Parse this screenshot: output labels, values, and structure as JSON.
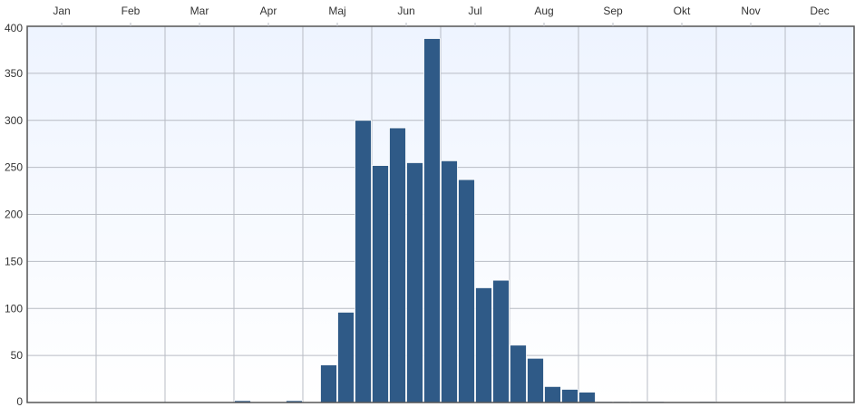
{
  "chart_data": {
    "type": "bar",
    "title": "",
    "xlabel": "",
    "ylabel": "",
    "ylim": [
      0,
      400
    ],
    "yticks": [
      0,
      50,
      100,
      150,
      200,
      250,
      300,
      350,
      400
    ],
    "months": [
      "Jan",
      "Feb",
      "Mar",
      "Apr",
      "Maj",
      "Jun",
      "Jul",
      "Aug",
      "Sep",
      "Okt",
      "Nov",
      "Dec"
    ],
    "bins_per_month": 4,
    "values": [
      0,
      0,
      0,
      0,
      0,
      0,
      0,
      0,
      0,
      0,
      0,
      0,
      2,
      0,
      0,
      2,
      0,
      40,
      96,
      300,
      252,
      292,
      255,
      387,
      257,
      237,
      122,
      130,
      61,
      47,
      17,
      14,
      11,
      1,
      1,
      1,
      1,
      0,
      0,
      1,
      0,
      0,
      0,
      0,
      0,
      0,
      0,
      0
    ],
    "grid": true,
    "legend": "none"
  },
  "colors": {
    "bar": "#2f5a87",
    "bar_edge": "#ffffff",
    "grid": "#b8bcc4",
    "frame": "#555555",
    "bg_top": "#ffffff",
    "bg_bottom": "#e8f0ff"
  }
}
